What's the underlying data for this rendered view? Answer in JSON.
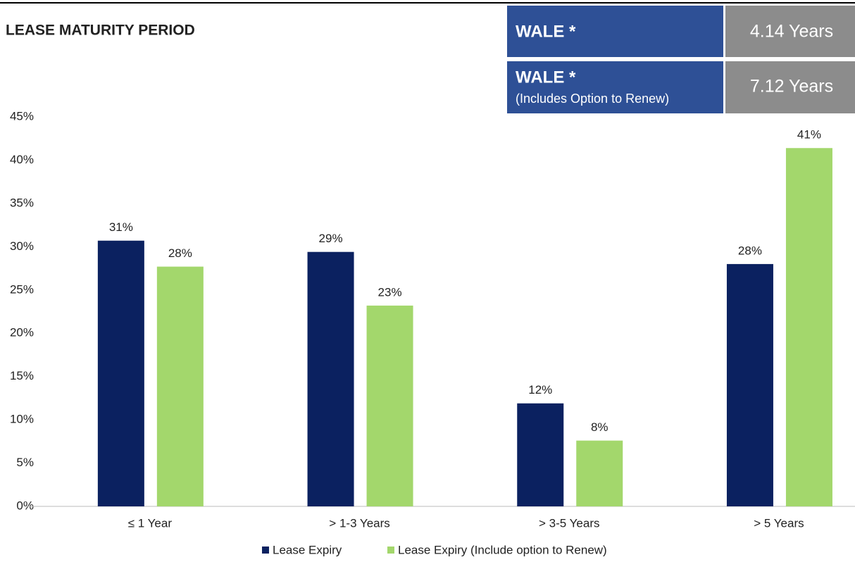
{
  "chart_data": {
    "type": "bar",
    "title": "LEASE MATURITY PERIOD",
    "categories": [
      "≤ 1 Year",
      "> 1-3 Years",
      "> 3-5 Years",
      "> 5 Years"
    ],
    "series": [
      {
        "name": "Lease Expiry",
        "color": "#0b2160",
        "values": [
          30.7,
          29.4,
          11.9,
          28.0
        ],
        "value_labels": [
          "31%",
          "29%",
          "12%",
          "28%"
        ]
      },
      {
        "name": "Lease Expiry (Include option to Renew)",
        "color": "#a3d76c",
        "values": [
          27.7,
          23.2,
          7.6,
          41.4
        ],
        "value_labels": [
          "28%",
          "23%",
          "8%",
          "41%"
        ]
      }
    ],
    "ylim": [
      0,
      45
    ],
    "yticks": [
      {
        "value": 0,
        "label": "0%"
      },
      {
        "value": 5,
        "label": "5%"
      },
      {
        "value": 10,
        "label": "10%"
      },
      {
        "value": 15,
        "label": "15%"
      },
      {
        "value": 20,
        "label": "20%"
      },
      {
        "value": 25,
        "label": "25%"
      },
      {
        "value": 30,
        "label": "30%"
      },
      {
        "value": 35,
        "label": "35%"
      },
      {
        "value": 40,
        "label": "40%"
      },
      {
        "value": 45,
        "label": "45%"
      }
    ],
    "grid": false,
    "legend": "bottom"
  },
  "wale_table": {
    "rows": [
      {
        "label": "WALE *",
        "value": "4.14 Years"
      },
      {
        "label": "WALE *",
        "note": "(Includes Option to Renew)",
        "value": "7.12 Years"
      }
    ]
  }
}
